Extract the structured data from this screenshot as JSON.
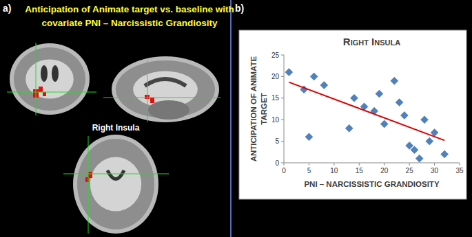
{
  "panel_a": {
    "label": "a)",
    "title_lines": [
      "Anticipation of Animate target vs. baseline with",
      "covariate PNI – Narcissistic Grandiosity"
    ],
    "region_label": "Right Insula"
  },
  "panel_b": {
    "label": "b)"
  },
  "chart_data": {
    "type": "scatter",
    "title": "Right Insula",
    "x_label": "PNI – NARCISSISTIC GRANDIOSITY",
    "y_label": "ANTICIPATION OF ANIMATE TARGET",
    "x": [
      1,
      4,
      5,
      6,
      8,
      13,
      14,
      16,
      18,
      19,
      20,
      22,
      23,
      24,
      25,
      26,
      27,
      28,
      29,
      30,
      32
    ],
    "values": [
      21,
      17,
      6,
      20,
      18,
      8,
      15,
      13,
      12,
      16,
      9,
      19,
      14,
      11,
      4,
      3,
      1,
      10,
      5,
      7,
      2
    ],
    "color": "#4f81bd",
    "marker": "diamond",
    "trend_line": {
      "x": [
        1,
        32
      ],
      "values": [
        18.7,
        5.2
      ],
      "color": "#e00000"
    },
    "xlim": [
      0,
      35
    ],
    "ylim": [
      0,
      25
    ],
    "xticks": [
      0,
      5,
      10,
      15,
      20,
      25,
      30,
      35
    ],
    "yticks": [
      0,
      5,
      10,
      15,
      20,
      25
    ],
    "grid": false
  }
}
